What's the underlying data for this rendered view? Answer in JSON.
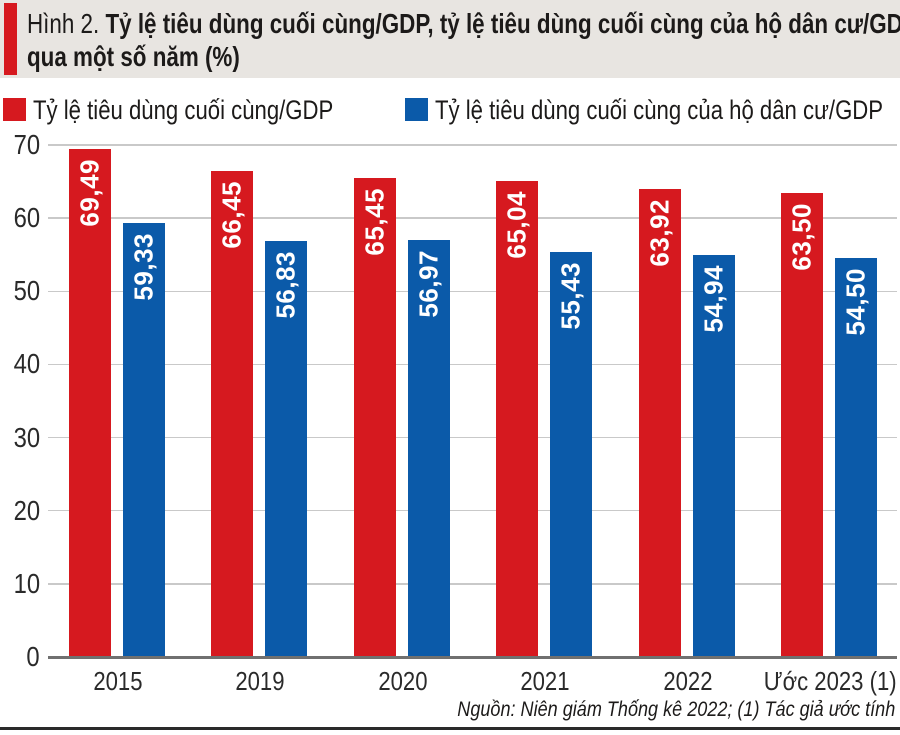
{
  "header": {
    "figure_label": "Hình 2.",
    "title_line1": "Tỷ lệ tiêu dùng cuối cùng/GDP, tỷ lệ tiêu dùng cuối cùng của hộ dân cư/GDP",
    "title_line2": "qua một số năm (%)"
  },
  "chart_data": {
    "type": "bar",
    "title": "Hình 2. Tỷ lệ tiêu dùng cuối cùng/GDP, tỷ lệ tiêu dùng cuối cùng của hộ dân cư/GDP qua một số năm (%)",
    "categories": [
      "2015",
      "2019",
      "2020",
      "2021",
      "2022",
      "Ước 2023 (1)"
    ],
    "series": [
      {
        "name": "Tỷ lệ tiêu dùng cuối cùng/GDP",
        "color": "#d6191f",
        "values": [
          69.49,
          66.45,
          65.45,
          65.04,
          63.92,
          63.5
        ],
        "labels": [
          "69,49",
          "66,45",
          "65,45",
          "65,04",
          "63,92",
          "63,50"
        ]
      },
      {
        "name": "Tỷ lệ tiêu dùng cuối cùng của hộ dân cư/GDP",
        "color": "#0b5aa9",
        "values": [
          59.33,
          56.83,
          56.97,
          55.43,
          54.94,
          54.5
        ],
        "labels": [
          "59,33",
          "56,83",
          "56,97",
          "55,43",
          "54,94",
          "54,50"
        ]
      }
    ],
    "xlabel": "",
    "ylabel": "",
    "ylim": [
      0,
      70
    ],
    "yticks": [
      0,
      10,
      20,
      30,
      40,
      50,
      60,
      70
    ],
    "grid": true,
    "legend_position": "top",
    "source": "Nguồn: Niên giám Thống kê 2022; (1) Tác giả ước tính"
  },
  "colors": {
    "header_bg": "#e8e5e1",
    "accent_red": "#d6191f",
    "bar_red": "#d6191f",
    "bar_blue": "#0b5aa9",
    "gridline": "#c9c9c9",
    "axis_line": "#707070",
    "divider": "#2a2a2a",
    "text": "#231f20"
  }
}
